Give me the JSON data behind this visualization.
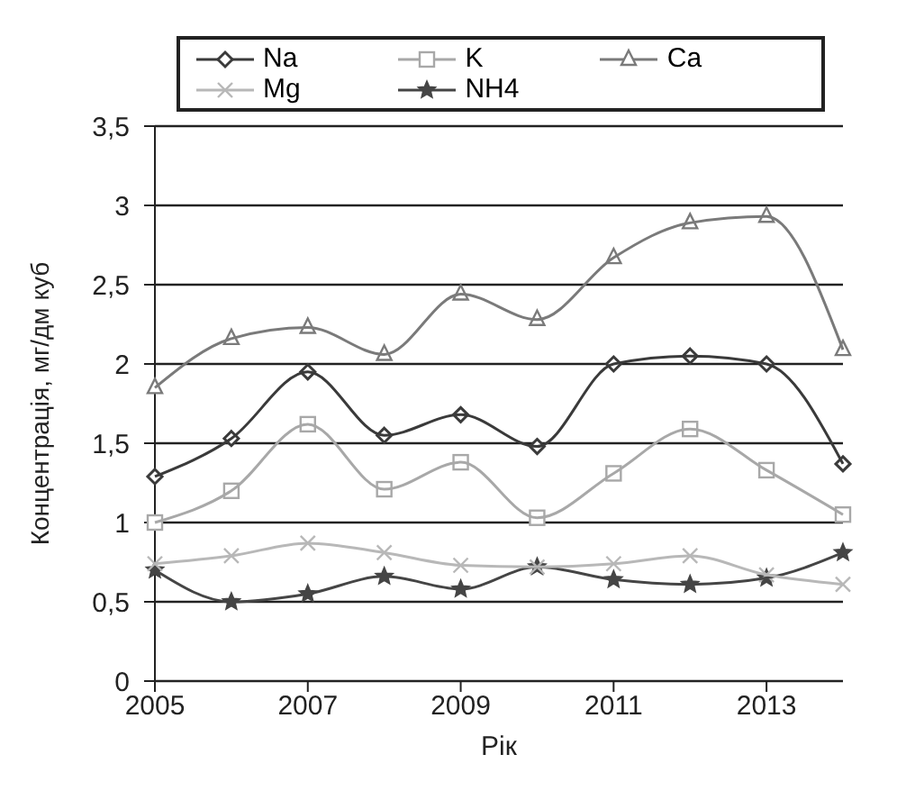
{
  "chart_data": {
    "type": "line",
    "xlabel": "Рік",
    "ylabel": "Концентрація, мг/дм куб",
    "x": [
      2005,
      2006,
      2007,
      2008,
      2009,
      2010,
      2011,
      2012,
      2013,
      2014
    ],
    "series": [
      {
        "name": "Na",
        "color": "#3a3a3a",
        "marker": "diamond",
        "values": [
          1.29,
          1.53,
          1.95,
          1.55,
          1.68,
          1.48,
          2.0,
          2.05,
          2.0,
          1.37
        ]
      },
      {
        "name": "K",
        "color": "#a8a8a8",
        "marker": "square",
        "values": [
          1.0,
          1.2,
          1.62,
          1.21,
          1.38,
          1.03,
          1.31,
          1.59,
          1.33,
          1.05
        ]
      },
      {
        "name": "Ca",
        "color": "#7a7a7a",
        "marker": "triangle",
        "values": [
          1.85,
          2.16,
          2.23,
          2.06,
          2.44,
          2.28,
          2.67,
          2.89,
          2.93,
          2.09
        ]
      },
      {
        "name": "Mg",
        "color": "#b8b8b8",
        "marker": "cross",
        "values": [
          0.74,
          0.79,
          0.87,
          0.81,
          0.73,
          0.72,
          0.74,
          0.79,
          0.67,
          0.61
        ]
      },
      {
        "name": "NH4",
        "color": "#454545",
        "marker": "star",
        "values": [
          0.7,
          0.5,
          0.55,
          0.66,
          0.58,
          0.72,
          0.64,
          0.61,
          0.65,
          0.81
        ]
      }
    ],
    "xlim": [
      2005,
      2014
    ],
    "xticks": [
      2005,
      2007,
      2009,
      2011,
      2013
    ],
    "ylim": [
      0,
      3.5
    ],
    "yticks": [
      0,
      {
        "value": 0.5,
        "label": "0,5"
      },
      1,
      {
        "value": 1.5,
        "label": "1,5"
      },
      2,
      {
        "value": 2.5,
        "label": "2,5"
      },
      3,
      {
        "value": 3.5,
        "label": "3,5"
      }
    ],
    "grid": "y",
    "legend": "top"
  }
}
